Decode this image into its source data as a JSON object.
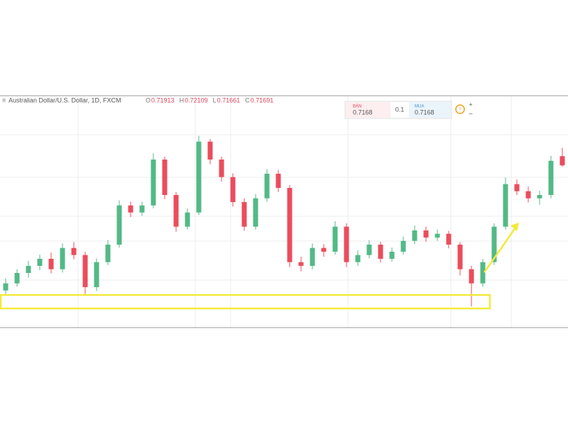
{
  "header": {
    "symbol": "Australian Dollar/U.S. Dollar, 1D, FXCM",
    "ohlc": [
      {
        "label": "O",
        "value": "0.71913"
      },
      {
        "label": "H",
        "value": "0.72109"
      },
      {
        "label": "L",
        "value": "0.71661"
      },
      {
        "label": "C",
        "value": "0.71691"
      }
    ]
  },
  "trade_widget": {
    "sell_label": "BÁN",
    "sell_price": "0.7168",
    "spread": "0.1",
    "buy_label": "MUA",
    "buy_price": "0.7168"
  },
  "chart_data": {
    "type": "candlestick",
    "up_color": "#53b987",
    "down_color": "#eb4d5c",
    "ylim": [
      0.678,
      0.7336
    ],
    "open": [
      0.6869,
      0.6886,
      0.6911,
      0.6928,
      0.6945,
      0.692,
      0.6971,
      0.6954,
      0.6877,
      0.6937,
      0.6979,
      0.7073,
      0.7056,
      0.7073,
      0.7183,
      0.7098,
      0.7022,
      0.7056,
      0.7226,
      0.7183,
      0.7141,
      0.7081,
      0.7022,
      0.709,
      0.7149,
      0.7115,
      0.6937,
      0.6928,
      0.6971,
      0.6962,
      0.7022,
      0.6937,
      0.6954,
      0.6979,
      0.6945,
      0.6962,
      0.6988,
      0.7013,
      0.6996,
      0.7005,
      0.6979,
      0.692,
      0.6886,
      0.6937,
      0.7022,
      0.7124,
      0.7107,
      0.709,
      0.7098,
      0.7191
    ],
    "high": [
      0.6898,
      0.692,
      0.694,
      0.6955,
      0.696,
      0.6982,
      0.6985,
      0.6962,
      0.6946,
      0.699,
      0.7085,
      0.7082,
      0.7082,
      0.7198,
      0.719,
      0.7105,
      0.7066,
      0.724,
      0.7232,
      0.719,
      0.715,
      0.709,
      0.71,
      0.716,
      0.7158,
      0.7122,
      0.695,
      0.6982,
      0.698,
      0.7035,
      0.703,
      0.6965,
      0.699,
      0.6986,
      0.6972,
      0.6998,
      0.7025,
      0.7022,
      0.7015,
      0.7012,
      0.6985,
      0.6928,
      0.6945,
      0.703,
      0.714,
      0.7135,
      0.7118,
      0.7108,
      0.7192,
      0.7211
    ],
    "low": [
      0.686,
      0.6878,
      0.69,
      0.6918,
      0.691,
      0.6912,
      0.6944,
      0.686,
      0.6868,
      0.693,
      0.6972,
      0.7045,
      0.7048,
      0.7066,
      0.7088,
      0.701,
      0.7015,
      0.705,
      0.7172,
      0.713,
      0.707,
      0.7012,
      0.7015,
      0.7082,
      0.7105,
      0.6925,
      0.6915,
      0.692,
      0.695,
      0.6955,
      0.6925,
      0.6928,
      0.6946,
      0.6936,
      0.6938,
      0.6955,
      0.698,
      0.6986,
      0.6988,
      0.697,
      0.6905,
      0.6831,
      0.6878,
      0.693,
      0.7015,
      0.7098,
      0.708,
      0.7075,
      0.709,
      0.7166
    ],
    "close": [
      0.6886,
      0.6911,
      0.6928,
      0.6945,
      0.692,
      0.6971,
      0.6954,
      0.6877,
      0.6937,
      0.6979,
      0.7073,
      0.7056,
      0.7073,
      0.7183,
      0.7098,
      0.7022,
      0.7056,
      0.7226,
      0.7183,
      0.7141,
      0.7081,
      0.7022,
      0.709,
      0.7149,
      0.7115,
      0.6937,
      0.6928,
      0.6971,
      0.6962,
      0.7022,
      0.6937,
      0.6954,
      0.6979,
      0.6945,
      0.6962,
      0.6988,
      0.7013,
      0.6996,
      0.7005,
      0.6979,
      0.692,
      0.6886,
      0.6937,
      0.7022,
      0.7124,
      0.7107,
      0.709,
      0.7098,
      0.718,
      0.7169
    ]
  }
}
